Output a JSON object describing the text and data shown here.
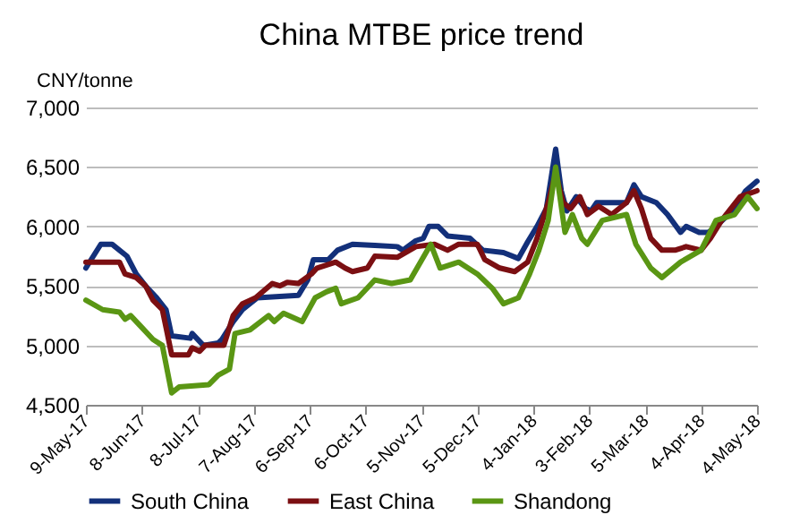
{
  "chart_data": {
    "type": "line",
    "title": "China MTBE price trend",
    "ylabel": "CNY/tonne",
    "xlim": [
      "2017-05-09",
      "2018-05-04"
    ],
    "xticks": [
      {
        "value": "2017-05-09",
        "label": "9-May-17"
      },
      {
        "value": "2017-06-08",
        "label": "8-Jun-17"
      },
      {
        "value": "2017-07-08",
        "label": "8-Jul-17"
      },
      {
        "value": "2017-08-07",
        "label": "7-Aug-17"
      },
      {
        "value": "2017-09-06",
        "label": "6-Sep-17"
      },
      {
        "value": "2017-10-06",
        "label": "6-Oct-17"
      },
      {
        "value": "2017-11-05",
        "label": "5-Nov-17"
      },
      {
        "value": "2017-12-05",
        "label": "5-Dec-17"
      },
      {
        "value": "2018-01-04",
        "label": "4-Jan-18"
      },
      {
        "value": "2018-02-03",
        "label": "3-Feb-18"
      },
      {
        "value": "2018-03-05",
        "label": "5-Mar-18"
      },
      {
        "value": "2018-04-04",
        "label": "4-Apr-18"
      },
      {
        "value": "2018-05-04",
        "label": "4-May-18"
      }
    ],
    "ylim": [
      4500,
      7000
    ],
    "yticks": [
      {
        "value": 4500,
        "label": "4,500"
      },
      {
        "value": 5000,
        "label": "5,000"
      },
      {
        "value": 5500,
        "label": "5,500"
      },
      {
        "value": 6000,
        "label": "6,000"
      },
      {
        "value": 6500,
        "label": "6,500"
      },
      {
        "value": 7000,
        "label": "7,000"
      }
    ],
    "grid": "y",
    "legend": "bottom",
    "line_style": "solid",
    "marker": "none",
    "series": [
      {
        "name": "South China",
        "color": "#13307a",
        "x": [
          "2017-05-09",
          "2017-05-17",
          "2017-05-23",
          "2017-05-27",
          "2017-05-31",
          "2017-06-05",
          "2017-06-10",
          "2017-06-16",
          "2017-06-21",
          "2017-06-24",
          "2017-07-04",
          "2017-07-05",
          "2017-07-11",
          "2017-07-19",
          "2017-07-21",
          "2017-07-27",
          "2017-08-01",
          "2017-08-09",
          "2017-08-31",
          "2017-09-05",
          "2017-09-08",
          "2017-09-16",
          "2017-09-21",
          "2017-09-29",
          "2017-10-11",
          "2017-10-23",
          "2017-10-26",
          "2017-11-02",
          "2017-11-06",
          "2017-11-09",
          "2017-11-14",
          "2017-11-19",
          "2017-12-01",
          "2017-12-08",
          "2017-12-19",
          "2017-12-27",
          "2018-01-01",
          "2018-01-06",
          "2018-01-11",
          "2018-01-16",
          "2018-01-19",
          "2018-01-22",
          "2018-01-27",
          "2018-02-01",
          "2018-02-04",
          "2018-02-07",
          "2018-02-23",
          "2018-02-27",
          "2018-03-03",
          "2018-03-11",
          "2018-03-17",
          "2018-03-24",
          "2018-03-27",
          "2018-04-03",
          "2018-04-08",
          "2018-04-12",
          "2018-04-22",
          "2018-04-28",
          "2018-05-04"
        ],
        "values": [
          5650,
          5850,
          5850,
          5800,
          5750,
          5600,
          5500,
          5400,
          5300,
          5080,
          5060,
          5100,
          5000,
          5020,
          5050,
          5200,
          5300,
          5400,
          5420,
          5550,
          5720,
          5720,
          5800,
          5850,
          5840,
          5830,
          5800,
          5880,
          5900,
          6000,
          6000,
          5920,
          5900,
          5800,
          5780,
          5730,
          5870,
          6000,
          6150,
          6650,
          6300,
          6130,
          6250,
          6150,
          6130,
          6200,
          6200,
          6350,
          6250,
          6200,
          6100,
          5950,
          6000,
          5950,
          5950,
          6000,
          6150,
          6300,
          6380
        ]
      },
      {
        "name": "East China",
        "color": "#7b0f12",
        "x": [
          "2017-05-09",
          "2017-05-27",
          "2017-05-30",
          "2017-06-05",
          "2017-06-10",
          "2017-06-14",
          "2017-06-19",
          "2017-06-21",
          "2017-06-24",
          "2017-07-03",
          "2017-07-05",
          "2017-07-09",
          "2017-07-12",
          "2017-07-22",
          "2017-07-27",
          "2017-08-01",
          "2017-08-08",
          "2017-08-17",
          "2017-08-21",
          "2017-08-25",
          "2017-08-31",
          "2017-09-07",
          "2017-09-10",
          "2017-09-20",
          "2017-09-25",
          "2017-09-29",
          "2017-10-07",
          "2017-10-11",
          "2017-10-23",
          "2017-11-02",
          "2017-11-12",
          "2017-11-19",
          "2017-11-25",
          "2017-12-05",
          "2017-12-09",
          "2017-12-17",
          "2017-12-25",
          "2018-01-01",
          "2018-01-06",
          "2018-01-12",
          "2018-01-16",
          "2018-01-20",
          "2018-01-24",
          "2018-01-29",
          "2018-02-02",
          "2018-02-08",
          "2018-02-15",
          "2018-02-23",
          "2018-02-27",
          "2018-03-03",
          "2018-03-08",
          "2018-03-14",
          "2018-03-21",
          "2018-03-27",
          "2018-04-04",
          "2018-04-09",
          "2018-04-15",
          "2018-04-25",
          "2018-05-04"
        ],
        "values": [
          5700,
          5700,
          5600,
          5570,
          5500,
          5380,
          5300,
          5150,
          4920,
          4920,
          4980,
          4950,
          5000,
          5000,
          5250,
          5350,
          5400,
          5520,
          5500,
          5530,
          5520,
          5600,
          5650,
          5700,
          5650,
          5620,
          5650,
          5750,
          5740,
          5830,
          5850,
          5800,
          5850,
          5850,
          5720,
          5650,
          5620,
          5700,
          5900,
          6200,
          6450,
          6200,
          6150,
          6250,
          6100,
          6170,
          6100,
          6200,
          6300,
          6150,
          5900,
          5800,
          5800,
          5830,
          5800,
          5900,
          6050,
          6250,
          6300
        ]
      },
      {
        "name": "Shandong",
        "color": "#5a9614",
        "x": [
          "2017-05-09",
          "2017-05-18",
          "2017-05-27",
          "2017-05-30",
          "2017-06-02",
          "2017-06-08",
          "2017-06-14",
          "2017-06-19",
          "2017-06-24",
          "2017-06-28",
          "2017-07-14",
          "2017-07-19",
          "2017-07-25",
          "2017-07-28",
          "2017-08-05",
          "2017-08-15",
          "2017-08-18",
          "2017-08-23",
          "2017-09-02",
          "2017-09-09",
          "2017-09-15",
          "2017-09-20",
          "2017-09-23",
          "2017-10-02",
          "2017-10-08",
          "2017-10-11",
          "2017-10-20",
          "2017-10-30",
          "2017-11-10",
          "2017-11-15",
          "2017-11-25",
          "2017-12-05",
          "2017-12-13",
          "2017-12-19",
          "2017-12-27",
          "2018-01-02",
          "2018-01-07",
          "2018-01-12",
          "2018-01-16",
          "2018-01-21",
          "2018-01-25",
          "2018-01-30",
          "2018-02-02",
          "2018-02-10",
          "2018-02-23",
          "2018-02-28",
          "2018-03-08",
          "2018-03-14",
          "2018-03-24",
          "2018-04-04",
          "2018-04-12",
          "2018-04-22",
          "2018-04-29",
          "2018-05-04"
        ],
        "values": [
          5380,
          5300,
          5280,
          5220,
          5250,
          5150,
          5050,
          5000,
          4600,
          4650,
          4670,
          4750,
          4800,
          5100,
          5130,
          5250,
          5200,
          5270,
          5200,
          5400,
          5450,
          5480,
          5350,
          5400,
          5500,
          5550,
          5520,
          5550,
          5850,
          5650,
          5700,
          5600,
          5480,
          5350,
          5400,
          5600,
          5800,
          6050,
          6500,
          5950,
          6100,
          5900,
          5850,
          6050,
          6100,
          5850,
          5650,
          5570,
          5700,
          5800,
          6050,
          6100,
          6250,
          6150
        ]
      }
    ]
  }
}
